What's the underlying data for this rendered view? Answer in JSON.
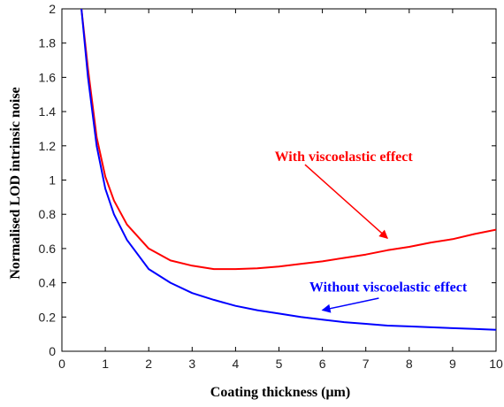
{
  "chart_data": {
    "type": "line",
    "title": "",
    "xlabel": "Coating thickness (μm)",
    "ylabel": "Normalised LOD intrinsic noise",
    "xlim": [
      0,
      10
    ],
    "ylim": [
      0,
      2
    ],
    "xticks": [
      "0",
      "1",
      "2",
      "3",
      "4",
      "5",
      "6",
      "7",
      "8",
      "9",
      "10"
    ],
    "yticks": [
      "0",
      "0.2",
      "0.4",
      "0.6",
      "0.8",
      "1",
      "1.2",
      "1.4",
      "1.6",
      "1.8",
      "2"
    ],
    "grid": false,
    "series": [
      {
        "name": "With viscoelastic effect",
        "color": "#ff0000",
        "x": [
          0.45,
          0.6,
          0.8,
          1.0,
          1.2,
          1.5,
          2.0,
          2.5,
          3.0,
          3.5,
          4.0,
          4.5,
          5.0,
          5.5,
          6.0,
          6.5,
          7.0,
          7.5,
          8.0,
          8.5,
          9.0,
          9.5,
          10.0
        ],
        "y": [
          2.0,
          1.65,
          1.25,
          1.02,
          0.88,
          0.74,
          0.6,
          0.53,
          0.5,
          0.48,
          0.48,
          0.485,
          0.495,
          0.51,
          0.525,
          0.545,
          0.565,
          0.59,
          0.61,
          0.635,
          0.655,
          0.685,
          0.71
        ]
      },
      {
        "name": "Without viscoelastic effect",
        "color": "#0000ff",
        "x": [
          0.45,
          0.6,
          0.8,
          1.0,
          1.2,
          1.5,
          2.0,
          2.5,
          3.0,
          3.5,
          4.0,
          4.5,
          5.0,
          5.5,
          6.0,
          6.5,
          7.0,
          7.5,
          8.0,
          8.5,
          9.0,
          9.5,
          10.0
        ],
        "y": [
          2.0,
          1.6,
          1.2,
          0.95,
          0.8,
          0.65,
          0.48,
          0.4,
          0.34,
          0.3,
          0.265,
          0.24,
          0.22,
          0.2,
          0.185,
          0.17,
          0.16,
          0.15,
          0.145,
          0.14,
          0.135,
          0.13,
          0.125
        ]
      }
    ],
    "annotations": [
      {
        "text": "With viscoelastic effect",
        "color": "#ff0000",
        "text_x": 4.9,
        "text_y": 1.11,
        "arrow_from": [
          5.6,
          1.09
        ],
        "arrow_to": [
          7.5,
          0.66
        ]
      },
      {
        "text": "Without viscoelastic effect",
        "color": "#0000ff",
        "text_x": 5.7,
        "text_y": 0.35,
        "arrow_from": [
          7.3,
          0.31
        ],
        "arrow_to": [
          6.0,
          0.24
        ]
      }
    ]
  }
}
